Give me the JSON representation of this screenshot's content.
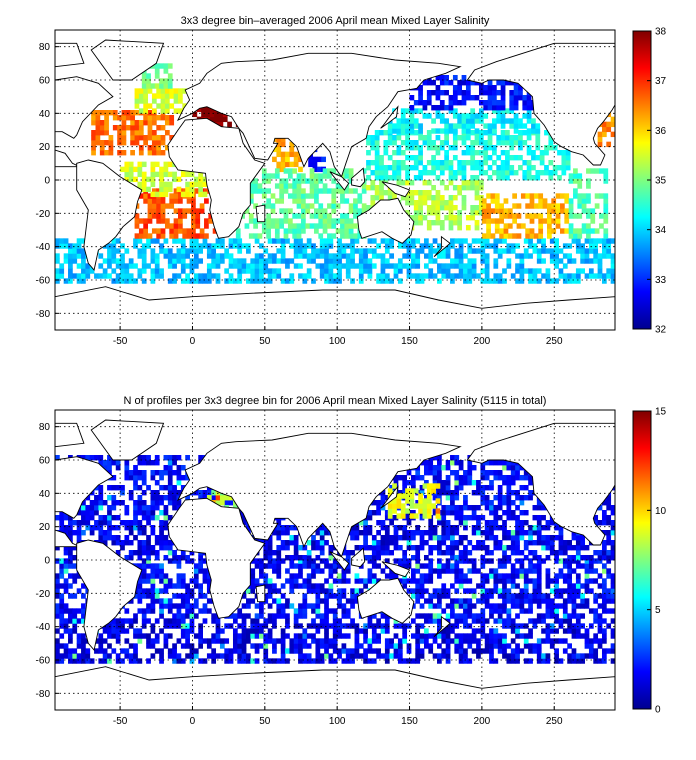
{
  "figure": {
    "panels": [
      {
        "title": "3x3 degree bin–averaged 2006 April mean Mixed Layer Salinity"
      },
      {
        "title": "N of profiles per 3x3 degree bin for 2006 April mean Mixed Layer Salinity  (5115 in total)"
      }
    ]
  },
  "chart_data": [
    {
      "type": "heatmap",
      "title": "3x3 degree bin–averaged 2006 April mean Mixed Layer Salinity",
      "xlabel": "",
      "ylabel": "",
      "xlim": [
        -95,
        292
      ],
      "ylim": [
        -90,
        90
      ],
      "x_ticks": [
        -50,
        0,
        50,
        100,
        150,
        200,
        250
      ],
      "y_ticks": [
        80,
        60,
        40,
        20,
        0,
        -20,
        -40,
        -60,
        -80
      ],
      "grid": true,
      "colorbar": {
        "min": 32,
        "max": 38,
        "ticks": [
          32,
          33,
          34,
          35,
          36,
          37,
          38
        ],
        "colormap": "jet"
      },
      "regions": [
        {
          "lon": [
            -95,
            292
          ],
          "lat": [
            -62,
            -35
          ],
          "value": 33.9
        },
        {
          "lon": [
            -40,
            15
          ],
          "lat": [
            -35,
            -5
          ],
          "value": 36.8
        },
        {
          "lon": [
            -50,
            10
          ],
          "lat": [
            -10,
            10
          ],
          "value": 35.5
        },
        {
          "lon": [
            -70,
            -15
          ],
          "lat": [
            15,
            40
          ],
          "value": 36.6
        },
        {
          "lon": [
            -40,
            -5
          ],
          "lat": [
            40,
            55
          ],
          "value": 35.5
        },
        {
          "lon": [
            -35,
            -15
          ],
          "lat": [
            55,
            68
          ],
          "value": 35.0
        },
        {
          "lon": [
            0,
            35
          ],
          "lat": [
            32,
            44
          ],
          "value": 38.0
        },
        {
          "lon": [
            55,
            75
          ],
          "lat": [
            5,
            25
          ],
          "value": 36.2
        },
        {
          "lon": [
            80,
            92
          ],
          "lat": [
            5,
            20
          ],
          "value": 33.0
        },
        {
          "lon": [
            30,
            120
          ],
          "lat": [
            -35,
            5
          ],
          "value": 34.8
        },
        {
          "lon": [
            120,
            200
          ],
          "lat": [
            -30,
            0
          ],
          "value": 35.3
        },
        {
          "lon": [
            200,
            260
          ],
          "lat": [
            -35,
            -10
          ],
          "value": 36.2
        },
        {
          "lon": [
            120,
            260
          ],
          "lat": [
            0,
            28
          ],
          "value": 34.4
        },
        {
          "lon": [
            135,
            240
          ],
          "lat": [
            28,
            42
          ],
          "value": 34.2
        },
        {
          "lon": [
            150,
            240
          ],
          "lat": [
            42,
            62
          ],
          "value": 32.8
        },
        {
          "lon": [
            260,
            285
          ],
          "lat": [
            -35,
            5
          ],
          "value": 34.7
        },
        {
          "lon": [
            277,
            290
          ],
          "lat": [
            20,
            40
          ],
          "value": 36.5
        }
      ]
    },
    {
      "type": "heatmap",
      "title": "N of profiles per 3x3 degree bin for 2006 April mean Mixed Layer Salinity  (5115 in total)",
      "xlabel": "",
      "ylabel": "",
      "xlim": [
        -95,
        292
      ],
      "ylim": [
        -90,
        90
      ],
      "x_ticks": [
        -50,
        0,
        50,
        100,
        150,
        200,
        250
      ],
      "y_ticks": [
        80,
        60,
        40,
        20,
        0,
        -20,
        -40,
        -60,
        -80
      ],
      "grid": true,
      "total_profiles": 5115,
      "colorbar": {
        "min": 0,
        "max": 15,
        "ticks": [
          0,
          5,
          10,
          15
        ],
        "colormap": "jet"
      },
      "regions": [
        {
          "lon": [
            -95,
            292
          ],
          "lat": [
            -62,
            -35
          ],
          "value": 1.5
        },
        {
          "lon": [
            -95,
            292
          ],
          "lat": [
            -35,
            0
          ],
          "value": 1.8
        },
        {
          "lon": [
            -95,
            292
          ],
          "lat": [
            0,
            30
          ],
          "value": 1.6
        },
        {
          "lon": [
            -95,
            292
          ],
          "lat": [
            30,
            62
          ],
          "value": 1.9
        },
        {
          "lon": [
            135,
            170
          ],
          "lat": [
            25,
            45
          ],
          "value": 9.0
        },
        {
          "lon": [
            10,
            35
          ],
          "lat": [
            30,
            40
          ],
          "value": 8.0
        }
      ]
    }
  ]
}
